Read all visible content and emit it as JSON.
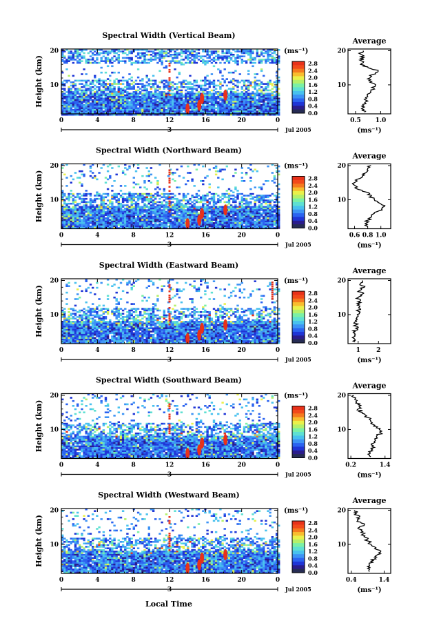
{
  "chart_data": {
    "type": "heatmap",
    "xlabel": "Local Time",
    "panels": [
      {
        "title": "Spectral Width (Vertical Beam)",
        "ylabel": "Height (km)",
        "x_ticks": [
          "0",
          "4",
          "8",
          "12",
          "16",
          "20",
          "0"
        ],
        "y_ticks": [
          "20",
          "10"
        ],
        "date_label": "Jul 2005",
        "day_marker": "3",
        "xlim": [
          0,
          24
        ],
        "ylim": [
          1.5,
          20.5
        ],
        "colorbar": {
          "unit": "(ms⁻¹)",
          "ticks": [
            "2.8",
            "2.4",
            "2.0",
            "1.6",
            "1.2",
            "0.8",
            "0.4",
            "0.0"
          ]
        },
        "avg": {
          "title": "Average",
          "xlabel": "(ms⁻¹)",
          "x_ticks": [
            "0.5",
            "1.0"
          ],
          "xlim": [
            0.35,
            1.2
          ],
          "profile": [
            [
              2,
              0.68
            ],
            [
              3,
              0.62
            ],
            [
              4,
              0.66
            ],
            [
              5,
              0.7
            ],
            [
              6,
              0.72
            ],
            [
              7,
              0.74
            ],
            [
              8,
              0.8
            ],
            [
              9,
              0.86
            ],
            [
              10,
              0.9
            ],
            [
              11,
              0.82
            ],
            [
              12,
              0.78
            ],
            [
              13,
              0.84
            ],
            [
              14,
              0.95
            ],
            [
              15,
              0.75
            ],
            [
              16,
              0.6
            ],
            [
              17,
              0.62
            ],
            [
              18,
              0.66
            ],
            [
              19,
              0.6
            ],
            [
              20,
              0.65
            ]
          ]
        }
      },
      {
        "title": "Spectral Width (Northward Beam)",
        "ylabel": "Height (km)",
        "x_ticks": [
          "0",
          "4",
          "8",
          "12",
          "16",
          "20",
          "0"
        ],
        "y_ticks": [
          "20",
          "10"
        ],
        "date_label": "Jul 2005",
        "day_marker": "3",
        "xlim": [
          0,
          24
        ],
        "ylim": [
          1.5,
          20.5
        ],
        "colorbar": {
          "unit": "(ms⁻¹)",
          "ticks": [
            "2.8",
            "2.4",
            "2.0",
            "1.6",
            "1.2",
            "0.8",
            "0.4",
            "0.0"
          ]
        },
        "avg": {
          "title": "Average",
          "xlabel": "(ms⁻¹)",
          "x_ticks": [
            "0.6",
            "0.8",
            "1.0"
          ],
          "xlim": [
            0.5,
            1.15
          ],
          "profile": [
            [
              2,
              0.8
            ],
            [
              3,
              0.76
            ],
            [
              4,
              0.8
            ],
            [
              5,
              0.86
            ],
            [
              6,
              0.9
            ],
            [
              7,
              1.02
            ],
            [
              8,
              1.05
            ],
            [
              9,
              0.98
            ],
            [
              10,
              0.9
            ],
            [
              11,
              0.85
            ],
            [
              12,
              0.82
            ],
            [
              13,
              0.66
            ],
            [
              14,
              0.62
            ],
            [
              15,
              0.6
            ],
            [
              16,
              0.64
            ],
            [
              17,
              0.72
            ],
            [
              18,
              0.78
            ],
            [
              19,
              0.8
            ],
            [
              20,
              0.85
            ]
          ]
        }
      },
      {
        "title": "Spectral Width (Eastward Beam)",
        "ylabel": "Height (km)",
        "x_ticks": [
          "0",
          "4",
          "8",
          "12",
          "16",
          "20",
          "0"
        ],
        "y_ticks": [
          "20",
          "10"
        ],
        "date_label": "Jul 2005",
        "day_marker": "3",
        "xlim": [
          0,
          24
        ],
        "ylim": [
          1.5,
          20.5
        ],
        "colorbar": {
          "unit": "(ms⁻¹)",
          "ticks": [
            "2.8",
            "2.4",
            "2.0",
            "1.6",
            "1.2",
            "0.8",
            "0.4",
            "0.0"
          ]
        },
        "avg": {
          "title": "Average",
          "xlabel": "(ms⁻¹)",
          "x_ticks": [
            "1",
            "2"
          ],
          "xlim": [
            0.5,
            2.6
          ],
          "profile": [
            [
              2,
              0.85
            ],
            [
              3,
              0.8
            ],
            [
              4,
              0.82
            ],
            [
              5,
              0.84
            ],
            [
              6,
              0.88
            ],
            [
              7,
              0.9
            ],
            [
              8,
              0.92
            ],
            [
              9,
              0.94
            ],
            [
              10,
              0.96
            ],
            [
              11,
              1.0
            ],
            [
              12,
              1.02
            ],
            [
              13,
              1.05
            ],
            [
              14,
              1.1
            ],
            [
              15,
              1.0
            ],
            [
              16,
              1.2
            ],
            [
              17,
              1.05
            ],
            [
              18,
              1.3
            ],
            [
              19,
              1.1
            ],
            [
              20,
              1.2
            ]
          ]
        }
      },
      {
        "title": "Spectral Width (Southward Beam)",
        "ylabel": "Height (km)",
        "x_ticks": [
          "0",
          "4",
          "8",
          "12",
          "16",
          "20",
          "0"
        ],
        "y_ticks": [
          "20",
          "10"
        ],
        "date_label": "Jul 2005",
        "day_marker": "3",
        "xlim": [
          0,
          24
        ],
        "ylim": [
          1.5,
          20.5
        ],
        "colorbar": {
          "unit": "(ms⁻¹)",
          "ticks": [
            "2.8",
            "2.4",
            "2.0",
            "1.6",
            "1.2",
            "0.8",
            "0.4",
            "0.0"
          ]
        },
        "avg": {
          "title": "Average",
          "xlabel": "(ms⁻¹)",
          "x_ticks": [
            "0.2",
            "1.4"
          ],
          "xlim": [
            0.1,
            1.6
          ],
          "profile": [
            [
              2,
              0.9
            ],
            [
              3,
              0.88
            ],
            [
              4,
              0.92
            ],
            [
              5,
              0.95
            ],
            [
              6,
              1.0
            ],
            [
              7,
              1.05
            ],
            [
              8,
              1.1
            ],
            [
              9,
              1.25
            ],
            [
              10,
              1.2
            ],
            [
              11,
              1.0
            ],
            [
              12,
              0.95
            ],
            [
              13,
              0.85
            ],
            [
              14,
              0.75
            ],
            [
              15,
              0.6
            ],
            [
              16,
              0.45
            ],
            [
              17,
              0.55
            ],
            [
              18,
              0.4
            ],
            [
              19,
              0.35
            ],
            [
              20,
              0.3
            ]
          ]
        }
      },
      {
        "title": "Spectral Width (Westward Beam)",
        "ylabel": "Height (km)",
        "x_ticks": [
          "0",
          "4",
          "8",
          "12",
          "16",
          "20",
          "0"
        ],
        "y_ticks": [
          "20",
          "10"
        ],
        "date_label": "Jul 2005",
        "day_marker": "3",
        "xlim": [
          0,
          24
        ],
        "ylim": [
          1.5,
          20.5
        ],
        "colorbar": {
          "unit": "(ms⁻¹)",
          "ticks": [
            "2.8",
            "2.4",
            "2.0",
            "1.6",
            "1.2",
            "0.8",
            "0.4",
            "0.0"
          ]
        },
        "avg": {
          "title": "Average",
          "xlabel": "(ms⁻¹)",
          "x_ticks": [
            "0.4",
            "1.4"
          ],
          "xlim": [
            0.3,
            1.6
          ],
          "profile": [
            [
              2,
              0.95
            ],
            [
              3,
              0.9
            ],
            [
              4,
              0.95
            ],
            [
              5,
              1.0
            ],
            [
              6,
              1.1
            ],
            [
              7,
              1.2
            ],
            [
              8,
              1.3
            ],
            [
              9,
              1.15
            ],
            [
              10,
              1.0
            ],
            [
              11,
              0.9
            ],
            [
              12,
              0.85
            ],
            [
              13,
              0.75
            ],
            [
              14,
              0.7
            ],
            [
              15,
              0.65
            ],
            [
              16,
              0.8
            ],
            [
              17,
              0.6
            ],
            [
              18,
              0.65
            ],
            [
              19,
              0.55
            ],
            [
              20,
              0.5
            ]
          ]
        }
      }
    ]
  }
}
